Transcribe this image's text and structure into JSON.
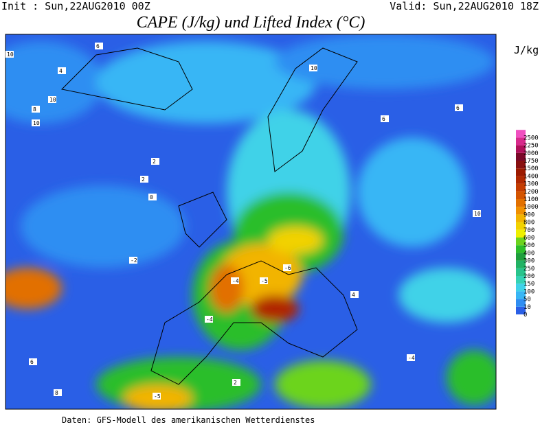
{
  "header": {
    "init": "Init : Sun,22AUG2010 00Z",
    "valid": "Valid: Sun,22AUG2010 18Z",
    "title": "CAPE (J/kg) und Lifted Index (°C)"
  },
  "legend": {
    "unit": "J/kg",
    "levels": [
      {
        "value": 0,
        "color": "#2a5fe6"
      },
      {
        "value": 10,
        "color": "#2f8ef2"
      },
      {
        "value": 50,
        "color": "#38b6f5"
      },
      {
        "value": 100,
        "color": "#3fd2e8"
      },
      {
        "value": 150,
        "color": "#35d2b4"
      },
      {
        "value": 200,
        "color": "#28c48c"
      },
      {
        "value": 250,
        "color": "#22b264"
      },
      {
        "value": 300,
        "color": "#1e9e3c"
      },
      {
        "value": 400,
        "color": "#2cbe2a"
      },
      {
        "value": 500,
        "color": "#6cd41e"
      },
      {
        "value": 600,
        "color": "#eef000"
      },
      {
        "value": 700,
        "color": "#f2d200"
      },
      {
        "value": 800,
        "color": "#f2b400"
      },
      {
        "value": 900,
        "color": "#f09000"
      },
      {
        "value": 1000,
        "color": "#e27000"
      },
      {
        "value": 1100,
        "color": "#d45400"
      },
      {
        "value": 1200,
        "color": "#c43c00"
      },
      {
        "value": 1300,
        "color": "#b02800"
      },
      {
        "value": 1400,
        "color": "#9c1a00"
      },
      {
        "value": 1500,
        "color": "#881010"
      },
      {
        "value": 1750,
        "color": "#7a0828"
      },
      {
        "value": 2000,
        "color": "#b0105a"
      },
      {
        "value": 2250,
        "color": "#d82a8c"
      },
      {
        "value": 2500,
        "color": "#f050c0"
      }
    ]
  },
  "map": {
    "contour_labels": [
      "10",
      "10",
      "10",
      "8",
      "6",
      "4",
      "2",
      "0",
      "-2",
      "-4",
      "-5",
      "-6",
      "-4",
      "-5",
      "2",
      "6",
      "10",
      "4",
      "-4",
      "6",
      "10",
      "2",
      "8",
      "6"
    ]
  },
  "footer": "Daten: GFS-Modell des amerikanischen Wetterdienstes"
}
